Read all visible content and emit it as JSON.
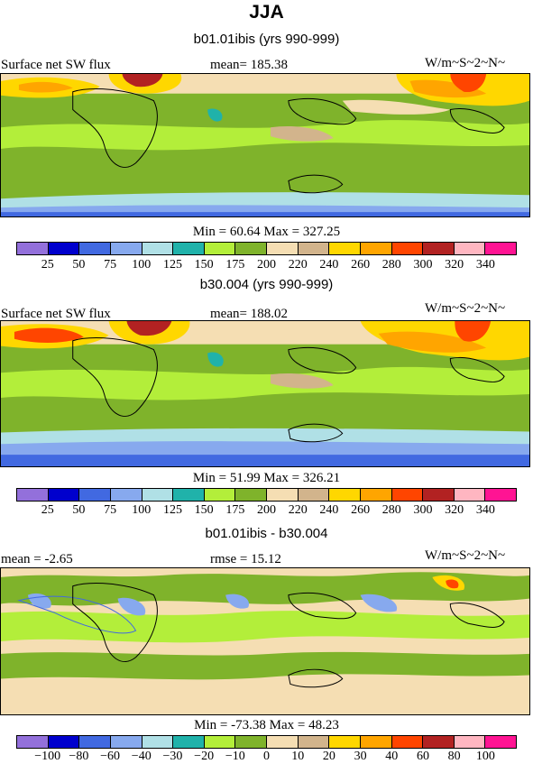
{
  "title": "JJA",
  "panels": [
    {
      "subtitle": "b01.01ibis (yrs 990-999)",
      "left_label": "Surface net SW flux",
      "center_label": "mean= 185.38",
      "right_label": "W/m~S~2~N~",
      "minmax": "Min =  60.64 Max = 327.25"
    },
    {
      "subtitle": "b30.004 (yrs 990-999)",
      "left_label": "Surface net SW flux",
      "center_label": "mean= 188.02",
      "right_label": "W/m~S~2~N~",
      "minmax": "Min =  51.99 Max = 326.21"
    },
    {
      "subtitle": "b01.01ibis - b30.004",
      "left_label": "mean =  -2.65",
      "center_label": "rmse =  15.12",
      "right_label": "W/m~S~2~N~",
      "minmax": "Min = -73.38 Max =  48.23"
    }
  ],
  "colorbar_abs": {
    "colors": [
      "#9370db",
      "#0000cd",
      "#4169e1",
      "#87a9ee",
      "#b0e0e6",
      "#20b2aa",
      "#b3ee3a",
      "#7fb32b",
      "#f5deb3",
      "#d2b48c",
      "#ffd700",
      "#ffa500",
      "#ff4500",
      "#b22222",
      "#ffb6c1",
      "#ff1493"
    ],
    "labels": [
      "25",
      "50",
      "75",
      "100",
      "125",
      "150",
      "175",
      "200",
      "220",
      "240",
      "260",
      "280",
      "300",
      "320",
      "340"
    ]
  },
  "colorbar_diff": {
    "colors": [
      "#9370db",
      "#0000cd",
      "#4169e1",
      "#87a9ee",
      "#b0e0e6",
      "#20b2aa",
      "#b3ee3a",
      "#7fb32b",
      "#f5deb3",
      "#d2b48c",
      "#ffd700",
      "#ffa500",
      "#ff4500",
      "#b22222",
      "#ffb6c1",
      "#ff1493"
    ],
    "labels": [
      "-100",
      "-80",
      "-60",
      "-40",
      "-30",
      "-20",
      "-10",
      "0",
      "10",
      "20",
      "30",
      "40",
      "60",
      "80",
      "100"
    ]
  }
}
